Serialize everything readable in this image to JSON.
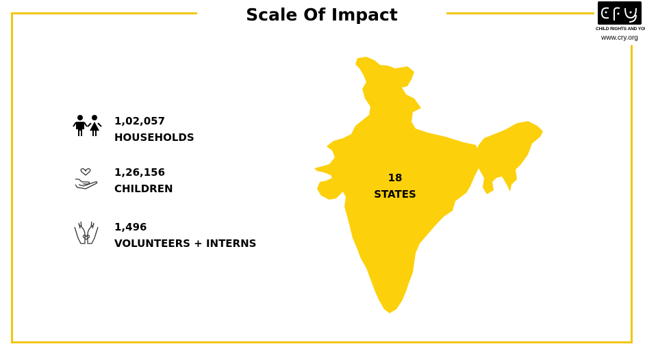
{
  "title": "Scale Of Impact",
  "colors": {
    "accent": "#F3C613",
    "map": "#FCD00B",
    "text": "#000000"
  },
  "logo": {
    "mark": "cry",
    "tagline": "CHILD RIGHTS AND YOU",
    "url": "www.cry.org"
  },
  "stats": [
    {
      "icon": "children-icon",
      "value": "1,02,057",
      "label": "HOUSEHOLDS"
    },
    {
      "icon": "heart-in-hand-icon",
      "value": "1,26,156",
      "label": "CHILDREN"
    },
    {
      "icon": "hands-heart-icon",
      "value": "1,496",
      "label": "VOLUNTEERS + INTERNS"
    }
  ],
  "map": {
    "value": "18",
    "label": "STATES"
  }
}
